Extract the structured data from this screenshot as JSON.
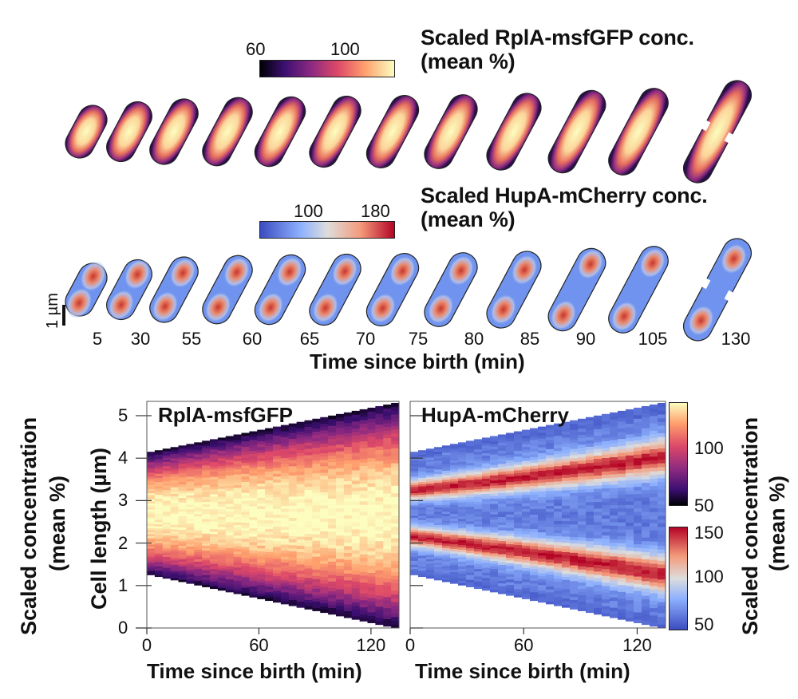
{
  "top": {
    "gfp_title_1": "Scaled RplA-msfGFP conc.",
    "gfp_title_2": "(mean %)",
    "gfp_cbar_ticks": [
      "60",
      "100"
    ],
    "mch_title_1": "Scaled HupA-mCherry conc.",
    "mch_title_2": "(mean %)",
    "mch_cbar_ticks": [
      "100",
      "180"
    ],
    "scalebar_label": "1 µm",
    "time_points": [
      "5",
      "30",
      "55",
      "60",
      "65",
      "70",
      "75",
      "80",
      "85",
      "90",
      "105",
      "130"
    ],
    "time_axis_label": "Time since birth (min)"
  },
  "bottom": {
    "left_ylabel_1": "Scaled concentration",
    "left_ylabel_2": "(mean %)",
    "cell_length_label": "Cell length (µm)",
    "y_ticks": [
      "0",
      "1",
      "2",
      "3",
      "4",
      "5"
    ],
    "x_ticks": [
      "0",
      "60",
      "120"
    ],
    "x_label_left": "Time since birth (min)",
    "x_label_right": "Time since birth (min)",
    "panel_left_title": "RplA-msfGFP",
    "panel_right_title": "HupA-mCherry",
    "gfp_cbar_ticks": [
      "100",
      "50"
    ],
    "mch_cbar_ticks": [
      "150",
      "100",
      "50"
    ],
    "right_ylabel_1": "Scaled concentration",
    "right_ylabel_2": "(mean %)"
  },
  "colors": {
    "magma": [
      "#000004",
      "#3b0f70",
      "#8c2981",
      "#de4968",
      "#fe9f6d",
      "#fcfdbf"
    ],
    "coolwarm": [
      "#3b4cc0",
      "#8db0fe",
      "#dddddd",
      "#f49a7b",
      "#b40426"
    ]
  },
  "chart_data": [
    {
      "type": "heatmap",
      "title": "RplA-msfGFP",
      "xlabel": "Time since birth (min)",
      "ylabel": "Cell length (µm)",
      "xlim": [
        0,
        135
      ],
      "ylim": [
        0,
        5.3
      ],
      "x_ticks": [
        0,
        60,
        120
      ],
      "y_ticks": [
        0,
        1,
        2,
        3,
        4,
        5
      ],
      "cell_bottom_um": [
        1.25,
        0.0
      ],
      "cell_top_um": [
        4.15,
        5.3
      ],
      "colorbar_label": "Scaled concentration (mean %)",
      "colorbar_range": [
        50,
        130
      ]
    },
    {
      "type": "heatmap",
      "title": "HupA-mCherry",
      "xlabel": "Time since birth (min)",
      "xlim": [
        0,
        135
      ],
      "ylim": [
        0,
        5.3
      ],
      "x_ticks": [
        0,
        60,
        120
      ],
      "cell_bottom_um": [
        1.25,
        0.0
      ],
      "cell_top_um": [
        4.15,
        5.3
      ],
      "colorbar_label": "Scaled concentration (mean %)",
      "colorbar_range": [
        40,
        155
      ]
    }
  ]
}
